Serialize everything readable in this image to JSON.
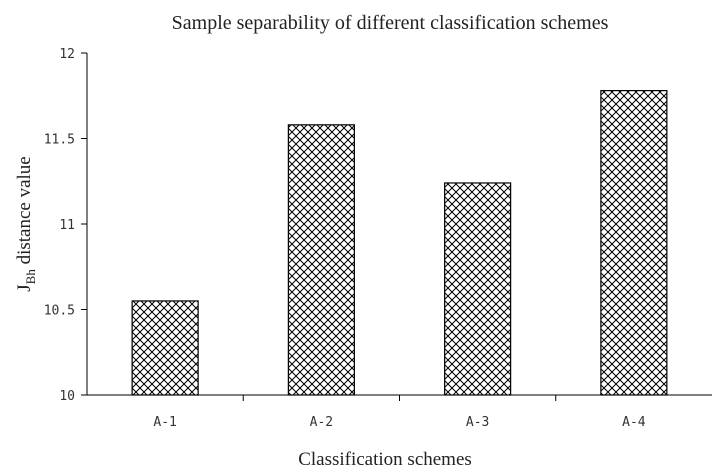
{
  "chart_data": {
    "type": "bar",
    "title": "Sample separability of different classification schemes",
    "xlabel": "Classification schemes",
    "ylabel": {
      "prefix": "J",
      "subscript": "Bh",
      "rest": " distance value"
    },
    "categories": [
      "A-1",
      "A-2",
      "A-3",
      "A-4"
    ],
    "values": [
      10.55,
      11.58,
      11.24,
      11.78
    ],
    "ylim": [
      10,
      12
    ],
    "yticks": [
      {
        "value": 10,
        "label": "10"
      },
      {
        "value": 10.5,
        "label": "10.5"
      },
      {
        "value": 11,
        "label": "11"
      },
      {
        "value": 11.5,
        "label": "11.5"
      },
      {
        "value": 12,
        "label": "12"
      }
    ],
    "bar_fill": "cross-hatch",
    "grid": false,
    "legend": "none"
  },
  "colors": {
    "axis": "#000000",
    "bar_stroke": "#000000",
    "hatch": "#000000",
    "text": "#222222"
  }
}
